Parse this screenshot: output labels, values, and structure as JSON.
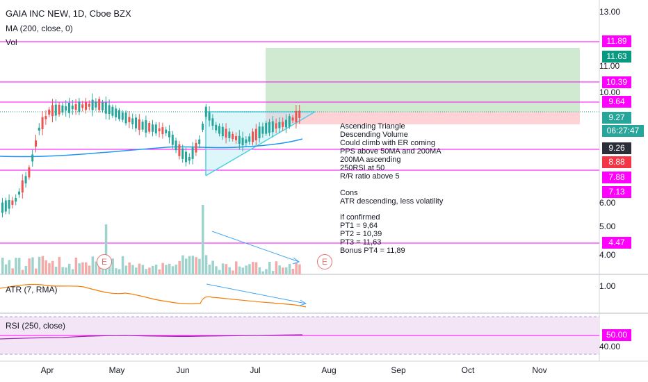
{
  "header": {
    "symbol": "GAIA INC NEW, 1D, Cboe BZX",
    "ma": "MA (200, close, 0)",
    "vol": "Vol"
  },
  "indicators": {
    "atr": "ATR (7, RMA)",
    "rsi": "RSI (250, close)"
  },
  "colors": {
    "magenta": "#ff00ff",
    "teal": "#26a69a",
    "red": "#ef5350",
    "green_zone": "#c8e6c9",
    "red_zone": "#ffcdd2",
    "triangle": "#4dd0e1",
    "ma": "#2196f3",
    "atr": "#f57c00",
    "rsi": "#9c27b0",
    "rsi_bg": "#f3e5f5"
  },
  "price_axis": {
    "ticks": [
      "13.00",
      "11.00",
      "10.00",
      "6.00",
      "5.00",
      "4.00"
    ],
    "badges": {
      "b1189": "11.89",
      "b1163": "11.63",
      "b1039": "10.39",
      "b964": "9.64",
      "b927": "9.27",
      "countdown": "06:27:47",
      "b926": "9.26",
      "b888": "8.88",
      "b788": "7.88",
      "b713": "7.13",
      "b447": "4.47"
    }
  },
  "atr_axis": {
    "tick": "1.00"
  },
  "rsi_axis": {
    "badge": "50.00",
    "tick": "40.00"
  },
  "time_axis": [
    "Apr",
    "May",
    "Jun",
    "Jul",
    "Aug",
    "Sep",
    "Oct",
    "Nov"
  ],
  "earnings": {
    "label": "E"
  },
  "annotation": {
    "lines": [
      "Ascending Triangle",
      "Descending Volume",
      "Could climb with ER coming",
      "PPS above 50MA and 200MA",
      "200MA ascending",
      "250RSI at 50",
      "R/R ratio above 5",
      "",
      "Cons",
      "ATR descending, less volatility",
      "",
      "If confirmed",
      "PT1 = 9,64",
      "PT2 = 10,39",
      "PT3 = 11,63",
      "Bonus PT4 = 11,89"
    ]
  }
}
